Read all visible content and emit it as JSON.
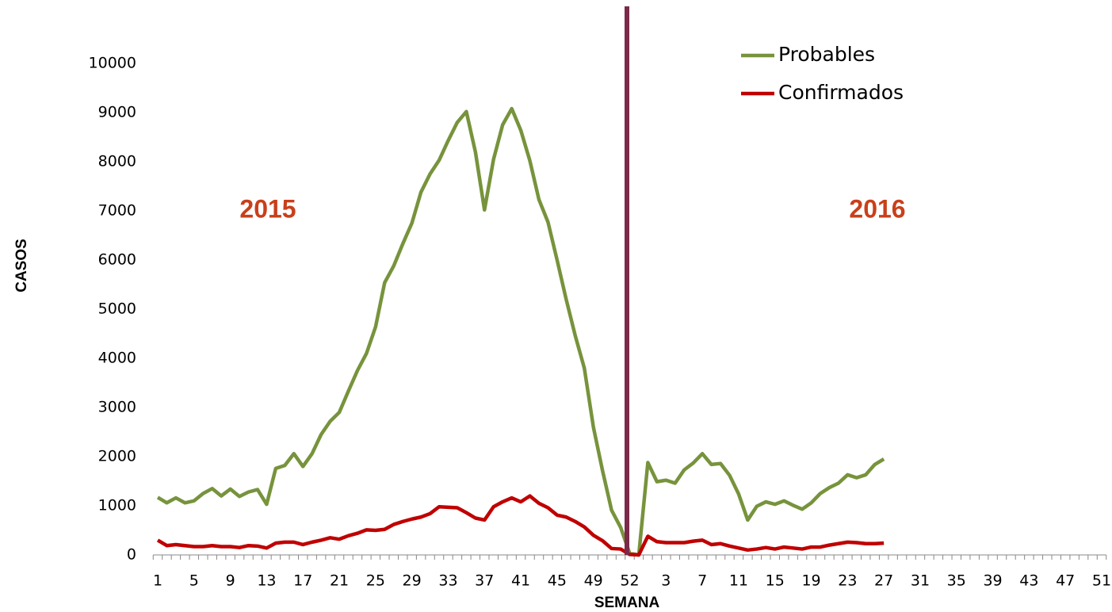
{
  "chart_data": {
    "type": "line",
    "xlabel": "SEMANA",
    "ylabel": "CASOS",
    "annotations": [
      "2015",
      "2016"
    ],
    "categories": [
      "1",
      null,
      null,
      null,
      "5",
      null,
      null,
      null,
      "9",
      null,
      null,
      null,
      "13",
      null,
      null,
      null,
      "17",
      null,
      null,
      null,
      "21",
      null,
      null,
      null,
      "25",
      null,
      null,
      null,
      "29",
      null,
      null,
      null,
      "33",
      null,
      null,
      null,
      "37",
      null,
      null,
      null,
      "41",
      null,
      null,
      null,
      "45",
      null,
      null,
      null,
      "49",
      null,
      null,
      null,
      "52",
      null,
      null,
      null,
      "3",
      null,
      null,
      null,
      "7",
      null,
      null,
      null,
      "11",
      null,
      null,
      null,
      "15",
      null,
      null,
      null,
      "19",
      null,
      null,
      null,
      "23",
      null,
      null,
      null,
      "27",
      null,
      null,
      null,
      "31",
      null,
      null,
      null,
      "35",
      null,
      null,
      null,
      "39",
      null,
      null,
      null,
      "43",
      null,
      null,
      null,
      "47",
      null,
      null,
      null,
      "51"
    ],
    "series": [
      {
        "name": "Probables",
        "color": "#77933c",
        "values": [
          1170,
          1060,
          1160,
          1060,
          1100,
          1250,
          1350,
          1200,
          1340,
          1190,
          1280,
          1330,
          1030,
          1760,
          1820,
          2060,
          1800,
          2060,
          2450,
          2720,
          2900,
          3330,
          3750,
          4100,
          4640,
          5540,
          5880,
          6330,
          6750,
          7380,
          7750,
          8030,
          8430,
          8800,
          9020,
          8200,
          7020,
          8050,
          8750,
          9080,
          8640,
          8020,
          7230,
          6770,
          6000,
          5200,
          4460,
          3800,
          2600,
          1720,
          910,
          560,
          30,
          0,
          1880,
          1490,
          1520,
          1460,
          1730,
          1870,
          2060,
          1840,
          1860,
          1620,
          1240,
          710,
          990,
          1080,
          1030,
          1100,
          1010,
          930,
          1060,
          1250,
          1370,
          1460,
          1630,
          1570,
          1630,
          1840,
          1950,
          null,
          null,
          null,
          null,
          null,
          null,
          null,
          null,
          null,
          null,
          null,
          null,
          null,
          null,
          null,
          null,
          null,
          null,
          null,
          null,
          null,
          null,
          null,
          null
        ]
      },
      {
        "name": "Confirmados",
        "color": "#c00000",
        "values": [
          300,
          190,
          210,
          190,
          170,
          170,
          190,
          170,
          170,
          150,
          190,
          180,
          140,
          240,
          260,
          260,
          210,
          260,
          300,
          350,
          320,
          390,
          440,
          510,
          500,
          520,
          620,
          680,
          730,
          770,
          840,
          980,
          970,
          960,
          860,
          750,
          710,
          980,
          1080,
          1160,
          1080,
          1200,
          1050,
          960,
          810,
          770,
          680,
          570,
          400,
          290,
          130,
          120,
          10,
          0,
          380,
          270,
          250,
          250,
          250,
          280,
          300,
          210,
          230,
          180,
          140,
          100,
          120,
          150,
          120,
          160,
          140,
          120,
          160,
          160,
          200,
          230,
          260,
          250,
          230,
          230,
          240,
          null,
          null,
          null,
          null,
          null,
          null,
          null,
          null,
          null,
          null,
          null,
          null,
          null,
          null,
          null,
          null,
          null,
          null,
          null,
          null,
          null,
          null,
          null,
          null
        ]
      }
    ],
    "ylim": [
      0,
      10000
    ],
    "yticks": [
      0,
      1000,
      2000,
      3000,
      4000,
      5000,
      6000,
      7000,
      8000,
      9000,
      10000
    ]
  }
}
